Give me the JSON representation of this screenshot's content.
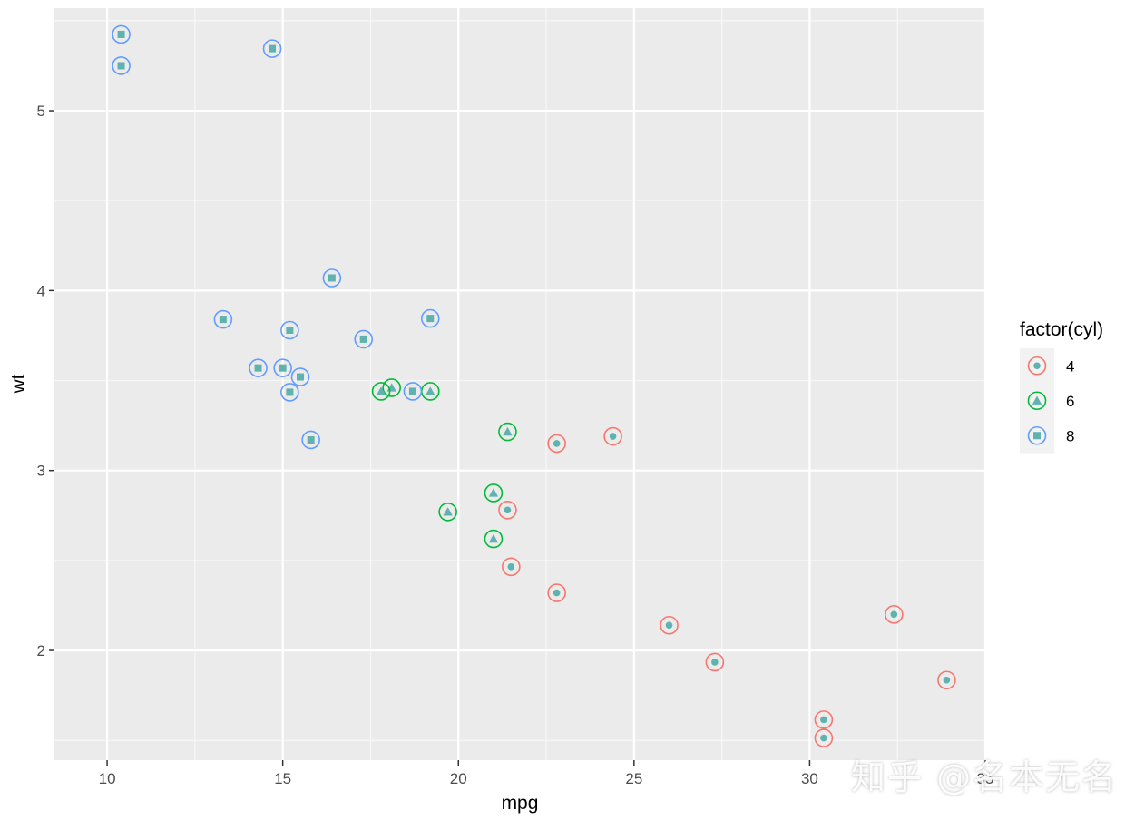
{
  "chart_data": {
    "type": "scatter",
    "title": "",
    "xlabel": "mpg",
    "ylabel": "wt",
    "xlim": [
      8.5,
      35.0
    ],
    "ylim": [
      1.39,
      5.57
    ],
    "x_ticks": [
      10,
      15,
      20,
      25,
      30,
      35
    ],
    "x_tick_labels": [
      "10",
      "15",
      "20",
      "25",
      "30",
      "35"
    ],
    "y_ticks": [
      2,
      3,
      4,
      5
    ],
    "y_tick_labels": [
      "2",
      "3",
      "4",
      "5"
    ],
    "grid": true,
    "legend": {
      "title": "factor(cyl)",
      "placement": "right",
      "entries": [
        {
          "label": "4",
          "color": "#F8766D",
          "shape": "circle"
        },
        {
          "label": "6",
          "color": "#00BA38",
          "shape": "triangle"
        },
        {
          "label": "8",
          "color": "#619CFF",
          "shape": "square"
        }
      ]
    },
    "fill_color": "#5FB2AE",
    "series": [
      {
        "name": "4",
        "color": "#F8766D",
        "shape": "circle",
        "points": [
          [
            22.8,
            2.32
          ],
          [
            24.4,
            3.19
          ],
          [
            22.8,
            3.15
          ],
          [
            32.4,
            2.2
          ],
          [
            30.4,
            1.615
          ],
          [
            33.9,
            1.835
          ],
          [
            21.5,
            2.465
          ],
          [
            27.3,
            1.935
          ],
          [
            26.0,
            2.14
          ],
          [
            30.4,
            1.513
          ],
          [
            21.4,
            2.78
          ]
        ]
      },
      {
        "name": "6",
        "color": "#00BA38",
        "shape": "triangle",
        "points": [
          [
            21.0,
            2.62
          ],
          [
            21.0,
            2.875
          ],
          [
            21.4,
            3.215
          ],
          [
            18.1,
            3.46
          ],
          [
            19.2,
            3.44
          ],
          [
            17.8,
            3.44
          ],
          [
            19.7,
            2.77
          ]
        ]
      },
      {
        "name": "8",
        "color": "#619CFF",
        "shape": "square",
        "points": [
          [
            18.7,
            3.44
          ],
          [
            14.3,
            3.57
          ],
          [
            16.4,
            4.07
          ],
          [
            17.3,
            3.73
          ],
          [
            15.2,
            3.78
          ],
          [
            10.4,
            5.25
          ],
          [
            10.4,
            5.424
          ],
          [
            14.7,
            5.345
          ],
          [
            15.5,
            3.52
          ],
          [
            15.2,
            3.435
          ],
          [
            13.3,
            3.84
          ],
          [
            19.2,
            3.845
          ],
          [
            15.8,
            3.17
          ],
          [
            15.0,
            3.57
          ]
        ]
      }
    ]
  },
  "watermark": "知乎 @名本无名"
}
